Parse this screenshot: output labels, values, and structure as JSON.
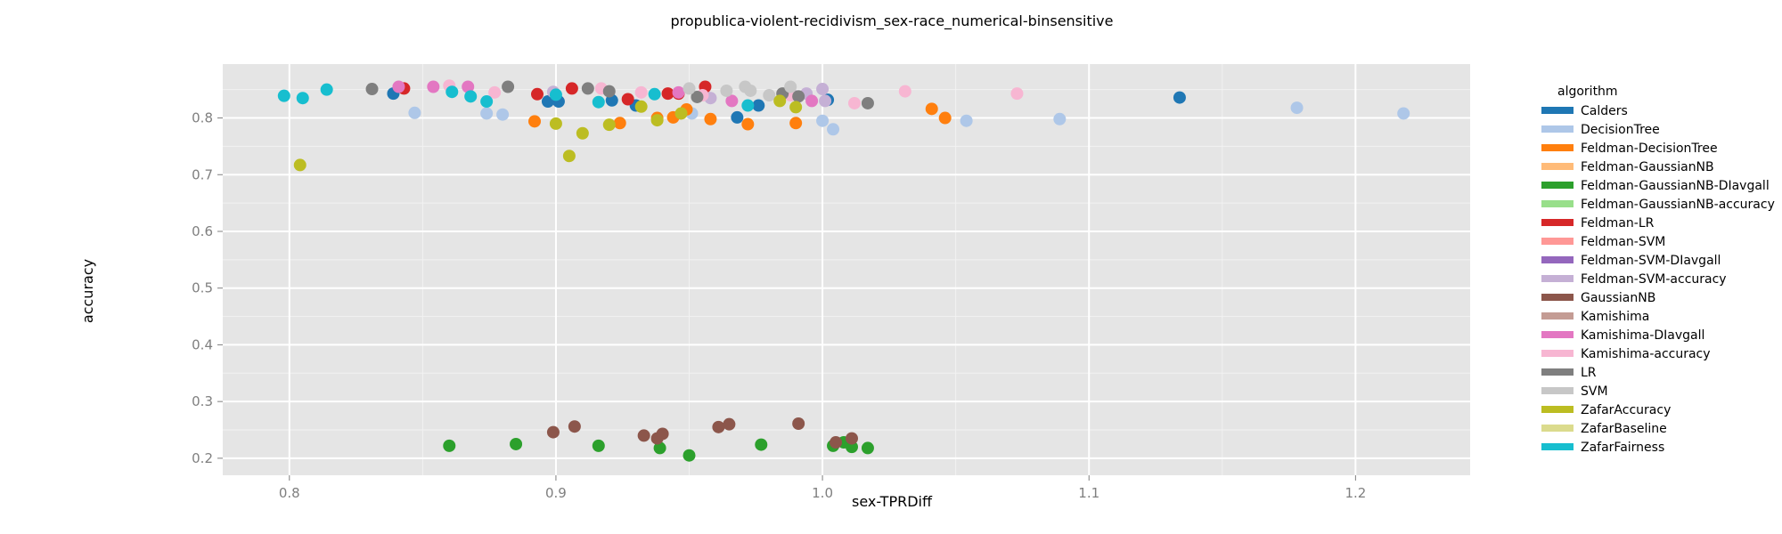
{
  "chart_data": {
    "type": "scatter",
    "title": "propublica-violent-recidivism_sex-race_numerical-binsensitive",
    "xlabel": "sex-TPRDiff",
    "ylabel": "accuracy",
    "xlim": [
      0.775,
      1.243
    ],
    "ylim": [
      0.17,
      0.895
    ],
    "xticks": [
      0.8,
      0.9,
      1.0,
      1.1,
      1.2
    ],
    "xtick_labels": [
      "0.8",
      "0.9",
      "1.0",
      "1.1",
      "1.2"
    ],
    "yticks": [
      0.2,
      0.3,
      0.4,
      0.5,
      0.6,
      0.7,
      0.8
    ],
    "ytick_labels": [
      "0.2",
      "0.3",
      "0.4",
      "0.5",
      "0.6",
      "0.7",
      "0.8"
    ],
    "grid": true,
    "legend": {
      "title": "algorithm",
      "position": "right"
    },
    "series": [
      {
        "name": "Calders",
        "color": "#1f77b4",
        "points": [
          [
            0.839,
            0.843
          ],
          [
            0.897,
            0.829
          ],
          [
            0.901,
            0.829
          ],
          [
            0.921,
            0.831
          ],
          [
            0.93,
            0.822
          ],
          [
            0.968,
            0.801
          ],
          [
            0.976,
            0.822
          ],
          [
            1.002,
            0.832
          ],
          [
            1.134,
            0.836
          ]
        ]
      },
      {
        "name": "DecisionTree",
        "color": "#aec7e8",
        "points": [
          [
            0.847,
            0.809
          ],
          [
            0.874,
            0.808
          ],
          [
            0.88,
            0.806
          ],
          [
            0.951,
            0.808
          ],
          [
            1.0,
            0.795
          ],
          [
            1.004,
            0.78
          ],
          [
            1.054,
            0.795
          ],
          [
            1.089,
            0.798
          ],
          [
            1.178,
            0.818
          ],
          [
            1.218,
            0.808
          ]
        ]
      },
      {
        "name": "Feldman-DecisionTree",
        "color": "#ff7f0e",
        "points": [
          [
            0.892,
            0.794
          ],
          [
            0.924,
            0.791
          ],
          [
            0.938,
            0.8
          ],
          [
            0.944,
            0.801
          ],
          [
            0.949,
            0.815
          ],
          [
            0.958,
            0.798
          ],
          [
            0.972,
            0.789
          ],
          [
            0.99,
            0.791
          ],
          [
            1.041,
            0.816
          ],
          [
            1.046,
            0.8
          ]
        ]
      },
      {
        "name": "Feldman-GaussianNB",
        "color": "#ffbb78",
        "points": []
      },
      {
        "name": "Feldman-GaussianNB-DIavgall",
        "color": "#2ca02c",
        "points": [
          [
            0.86,
            0.222
          ],
          [
            0.885,
            0.225
          ],
          [
            0.916,
            0.222
          ],
          [
            0.939,
            0.218
          ],
          [
            0.95,
            0.205
          ],
          [
            0.977,
            0.224
          ],
          [
            1.004,
            0.222
          ],
          [
            1.008,
            0.228
          ],
          [
            1.011,
            0.22
          ],
          [
            1.017,
            0.218
          ]
        ]
      },
      {
        "name": "Feldman-GaussianNB-accuracy",
        "color": "#98df8a",
        "points": []
      },
      {
        "name": "Feldman-LR",
        "color": "#d62728",
        "points": [
          [
            0.843,
            0.852
          ],
          [
            0.893,
            0.842
          ],
          [
            0.906,
            0.852
          ],
          [
            0.927,
            0.833
          ],
          [
            0.942,
            0.843
          ],
          [
            0.946,
            0.843
          ],
          [
            0.956,
            0.855
          ]
        ]
      },
      {
        "name": "Feldman-SVM",
        "color": "#ff9896",
        "points": []
      },
      {
        "name": "Feldman-SVM-DIavgall",
        "color": "#9467bd",
        "points": []
      },
      {
        "name": "Feldman-SVM-accuracy",
        "color": "#c5b0d5",
        "points": [
          [
            0.899,
            0.846
          ],
          [
            0.958,
            0.835
          ],
          [
            0.988,
            0.845
          ],
          [
            0.994,
            0.843
          ],
          [
            1.0,
            0.851
          ],
          [
            1.001,
            0.83
          ]
        ]
      },
      {
        "name": "GaussianNB",
        "color": "#8c564b",
        "points": [
          [
            0.899,
            0.246
          ],
          [
            0.907,
            0.256
          ],
          [
            0.933,
            0.24
          ],
          [
            0.938,
            0.235
          ],
          [
            0.94,
            0.243
          ],
          [
            0.961,
            0.255
          ],
          [
            0.965,
            0.26
          ],
          [
            0.991,
            0.261
          ],
          [
            1.005,
            0.228
          ],
          [
            1.011,
            0.235
          ]
        ]
      },
      {
        "name": "Kamishima",
        "color": "#c49c94",
        "points": []
      },
      {
        "name": "Kamishima-DIavgall",
        "color": "#e377c2",
        "points": [
          [
            0.841,
            0.855
          ],
          [
            0.854,
            0.855
          ],
          [
            0.867,
            0.855
          ],
          [
            0.946,
            0.845
          ],
          [
            0.966,
            0.83
          ],
          [
            0.996,
            0.83
          ]
        ]
      },
      {
        "name": "Kamishima-accuracy",
        "color": "#f7b6d2",
        "points": [
          [
            0.86,
            0.857
          ],
          [
            0.877,
            0.845
          ],
          [
            0.917,
            0.852
          ],
          [
            0.932,
            0.845
          ],
          [
            0.955,
            0.84
          ],
          [
            0.988,
            0.84
          ],
          [
            1.012,
            0.826
          ],
          [
            1.031,
            0.847
          ],
          [
            1.073,
            0.843
          ]
        ]
      },
      {
        "name": "LR",
        "color": "#7f7f7f",
        "points": [
          [
            0.831,
            0.851
          ],
          [
            0.882,
            0.855
          ],
          [
            0.912,
            0.852
          ],
          [
            0.92,
            0.847
          ],
          [
            0.953,
            0.837
          ],
          [
            0.985,
            0.843
          ],
          [
            0.991,
            0.838
          ],
          [
            1.017,
            0.826
          ]
        ]
      },
      {
        "name": "SVM",
        "color": "#c7c7c7",
        "points": [
          [
            0.95,
            0.852
          ],
          [
            0.964,
            0.848
          ],
          [
            0.971,
            0.855
          ],
          [
            0.973,
            0.848
          ],
          [
            0.98,
            0.84
          ],
          [
            0.988,
            0.855
          ]
        ]
      },
      {
        "name": "ZafarAccuracy",
        "color": "#bcbd22",
        "points": [
          [
            0.804,
            0.717
          ],
          [
            0.9,
            0.79
          ],
          [
            0.905,
            0.733
          ],
          [
            0.91,
            0.773
          ],
          [
            0.92,
            0.788
          ],
          [
            0.932,
            0.82
          ],
          [
            0.938,
            0.796
          ],
          [
            0.947,
            0.808
          ],
          [
            0.984,
            0.83
          ],
          [
            0.99,
            0.819
          ]
        ]
      },
      {
        "name": "ZafarBaseline",
        "color": "#dbdb8d",
        "points": []
      },
      {
        "name": "ZafarFairness",
        "color": "#17becf",
        "points": [
          [
            0.798,
            0.839
          ],
          [
            0.805,
            0.835
          ],
          [
            0.814,
            0.85
          ],
          [
            0.861,
            0.846
          ],
          [
            0.868,
            0.838
          ],
          [
            0.874,
            0.829
          ],
          [
            0.9,
            0.841
          ],
          [
            0.916,
            0.828
          ],
          [
            0.937,
            0.842
          ],
          [
            0.972,
            0.822
          ]
        ]
      }
    ]
  }
}
